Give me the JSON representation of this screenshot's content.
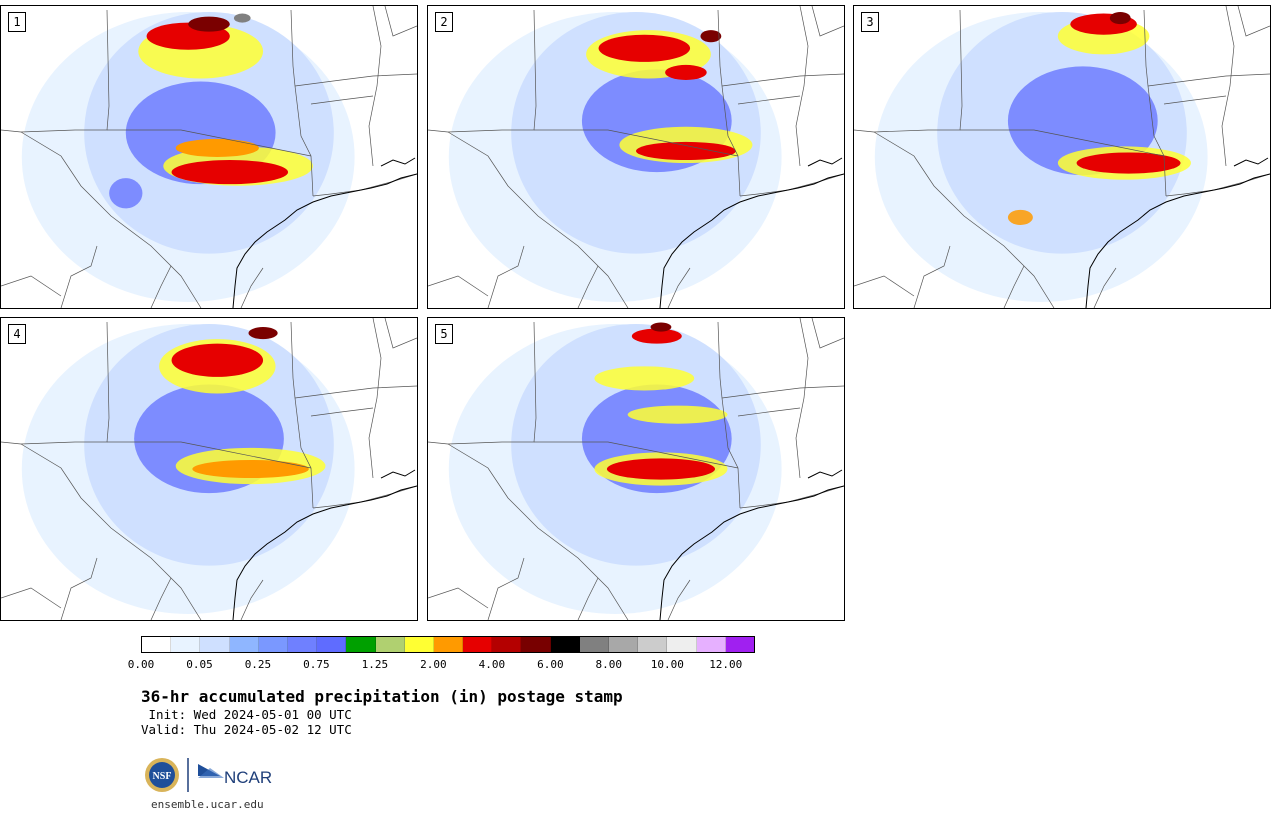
{
  "product": {
    "title": "36-hr accumulated precipitation (in) postage stamp",
    "init_line": " Init: Wed 2024-05-01 00 UTC",
    "valid_line": "Valid: Thu 2024-05-02 12 UTC",
    "website": "ensemble.ucar.edu"
  },
  "panels": [
    {
      "member": "1",
      "cores": [
        [
          0.45,
          0.1,
          0.2,
          0.09,
          "#e60000"
        ],
        [
          0.5,
          0.06,
          0.1,
          0.05,
          "#7a0000"
        ],
        [
          0.58,
          0.04,
          0.04,
          0.03,
          "#808080"
        ],
        [
          0.55,
          0.55,
          0.28,
          0.08,
          "#e60000"
        ],
        [
          0.52,
          0.47,
          0.2,
          0.06,
          "#ff9a00"
        ]
      ],
      "blobs": [
        [
          0.48,
          0.42,
          0.36,
          0.34,
          "#6f7cff"
        ],
        [
          0.48,
          0.15,
          0.3,
          0.18,
          "#ffff33"
        ],
        [
          0.57,
          0.53,
          0.36,
          0.13,
          "#ffff33"
        ],
        [
          0.3,
          0.62,
          0.08,
          0.1,
          "#6f7cff"
        ]
      ]
    },
    {
      "member": "2",
      "cores": [
        [
          0.52,
          0.14,
          0.22,
          0.09,
          "#e60000"
        ],
        [
          0.62,
          0.22,
          0.1,
          0.05,
          "#e60000"
        ],
        [
          0.68,
          0.1,
          0.05,
          0.04,
          "#7a0000"
        ],
        [
          0.62,
          0.48,
          0.24,
          0.06,
          "#e60000"
        ]
      ],
      "blobs": [
        [
          0.55,
          0.38,
          0.36,
          0.34,
          "#6f7cff"
        ],
        [
          0.53,
          0.16,
          0.3,
          0.16,
          "#ffff33"
        ],
        [
          0.62,
          0.46,
          0.32,
          0.12,
          "#ffff33"
        ]
      ]
    },
    {
      "member": "3",
      "cores": [
        [
          0.6,
          0.06,
          0.16,
          0.07,
          "#e60000"
        ],
        [
          0.64,
          0.04,
          0.05,
          0.04,
          "#7a0000"
        ],
        [
          0.66,
          0.52,
          0.25,
          0.07,
          "#e60000"
        ]
      ],
      "blobs": [
        [
          0.55,
          0.38,
          0.36,
          0.36,
          "#6f7cff"
        ],
        [
          0.6,
          0.1,
          0.22,
          0.12,
          "#ffff33"
        ],
        [
          0.65,
          0.52,
          0.32,
          0.11,
          "#ffff33"
        ],
        [
          0.4,
          0.7,
          0.06,
          0.05,
          "#ff9a00"
        ]
      ]
    },
    {
      "member": "4",
      "cores": [
        [
          0.52,
          0.14,
          0.22,
          0.11,
          "#e60000"
        ],
        [
          0.63,
          0.05,
          0.07,
          0.04,
          "#7a0000"
        ],
        [
          0.6,
          0.5,
          0.28,
          0.06,
          "#ff9a00"
        ]
      ],
      "blobs": [
        [
          0.5,
          0.4,
          0.36,
          0.36,
          "#6f7cff"
        ],
        [
          0.52,
          0.16,
          0.28,
          0.18,
          "#ffff33"
        ],
        [
          0.6,
          0.49,
          0.36,
          0.12,
          "#ffff33"
        ]
      ]
    },
    {
      "member": "5",
      "cores": [
        [
          0.55,
          0.06,
          0.12,
          0.05,
          "#e60000"
        ],
        [
          0.56,
          0.03,
          0.05,
          0.03,
          "#7a0000"
        ],
        [
          0.56,
          0.5,
          0.26,
          0.07,
          "#e60000"
        ]
      ],
      "blobs": [
        [
          0.55,
          0.4,
          0.36,
          0.36,
          "#6f7cff"
        ],
        [
          0.52,
          0.2,
          0.24,
          0.08,
          "#ffff33"
        ],
        [
          0.6,
          0.32,
          0.24,
          0.06,
          "#ffff33"
        ],
        [
          0.56,
          0.5,
          0.32,
          0.11,
          "#ffff33"
        ]
      ]
    }
  ],
  "colorbar": {
    "colors": [
      "#ffffff",
      "#e8f3ff",
      "#cfe0ff",
      "#8fb6ff",
      "#7a98ff",
      "#6f80ff",
      "#5f6cff",
      "#00a000",
      "#b0d070",
      "#ffff33",
      "#ff9a00",
      "#e60000",
      "#b40000",
      "#780000",
      "#000000",
      "#808080",
      "#a8a8a8",
      "#cccccc",
      "#eeeeee",
      "#e6b0ff",
      "#a020f0"
    ],
    "tick_labels": [
      "0.00",
      "0.05",
      "0.25",
      "0.75",
      "1.25",
      "2.00",
      "4.00",
      "6.00",
      "8.00",
      "10.00",
      "12.00"
    ]
  },
  "logos": {
    "nsf": "NSF",
    "ncar": "NCAR"
  }
}
